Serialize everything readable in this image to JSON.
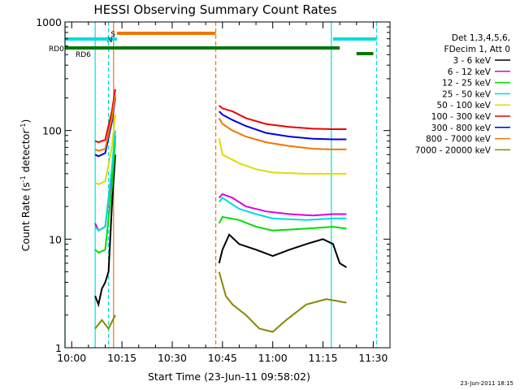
{
  "chart_data": {
    "type": "line",
    "title": "HESSI Observing Summary Count Rates",
    "xlabel": "Start Time (23-Jun-11 09:58:02)",
    "ylabel_main": "Count Rate (s",
    "ylabel_sup1": "-1",
    "ylabel_mid": " detector",
    "ylabel_sup2": "-1",
    "ylabel_end": ")",
    "y_scale": "log",
    "ylim": [
      1,
      1000
    ],
    "xlim_minutes": [
      -2,
      95
    ],
    "x_ticks": [
      {
        "t": 0,
        "label": "10:00"
      },
      {
        "t": 15,
        "label": "10:15"
      },
      {
        "t": 30,
        "label": "10:30"
      },
      {
        "t": 45,
        "label": "10:45"
      },
      {
        "t": 60,
        "label": "11:00"
      },
      {
        "t": 75,
        "label": "11:15"
      },
      {
        "t": 90,
        "label": "11:30"
      }
    ],
    "y_ticks": [
      {
        "v": 1,
        "label": "1"
      },
      {
        "v": 10,
        "label": "10"
      },
      {
        "v": 100,
        "label": "100"
      },
      {
        "v": 1000,
        "label": "1000"
      }
    ],
    "legend_header": [
      "Det 1,3,4,5,6,",
      "FDecim 1, Att 0"
    ],
    "series": [
      {
        "name": "3 - 6 keV",
        "color": "#000000",
        "segments": [
          [
            [
              7,
              3
            ],
            [
              8,
              2.5
            ],
            [
              9,
              3.5
            ],
            [
              10,
              4
            ],
            [
              11,
              5
            ],
            [
              12,
              20
            ],
            [
              13,
              60
            ]
          ],
          [
            [
              44,
              6
            ],
            [
              45,
              8
            ],
            [
              47,
              11
            ],
            [
              50,
              9
            ],
            [
              55,
              8
            ],
            [
              60,
              7
            ],
            [
              65,
              8
            ],
            [
              70,
              9
            ],
            [
              75,
              10
            ],
            [
              78,
              9
            ],
            [
              80,
              6
            ],
            [
              82,
              5.5
            ]
          ]
        ]
      },
      {
        "name": "6 - 12 keV",
        "color": "#dd00dd",
        "segments": [
          [
            [
              7,
              14
            ],
            [
              8,
              12
            ],
            [
              10,
              13
            ],
            [
              12,
              40
            ],
            [
              13,
              90
            ]
          ],
          [
            [
              44,
              24
            ],
            [
              45,
              26
            ],
            [
              48,
              24
            ],
            [
              52,
              20
            ],
            [
              58,
              18
            ],
            [
              65,
              17
            ],
            [
              72,
              16.5
            ],
            [
              78,
              17
            ],
            [
              82,
              17
            ]
          ]
        ]
      },
      {
        "name": "12 - 25 keV",
        "color": "#00dd00",
        "segments": [
          [
            [
              7,
              8
            ],
            [
              8,
              7.5
            ],
            [
              10,
              8
            ],
            [
              12,
              30
            ],
            [
              13,
              80
            ]
          ],
          [
            [
              44,
              14
            ],
            [
              45,
              16
            ],
            [
              50,
              15
            ],
            [
              55,
              13
            ],
            [
              60,
              12
            ],
            [
              70,
              12.5
            ],
            [
              78,
              13
            ],
            [
              82,
              12.5
            ]
          ]
        ]
      },
      {
        "name": "25 - 50 keV",
        "color": "#00dddd",
        "segments": [
          [
            [
              7,
              13
            ],
            [
              8,
              12
            ],
            [
              10,
              13
            ],
            [
              12,
              45
            ],
            [
              13,
              100
            ]
          ],
          [
            [
              44,
              22
            ],
            [
              45,
              24
            ],
            [
              50,
              19
            ],
            [
              55,
              17
            ],
            [
              60,
              15.5
            ],
            [
              70,
              15
            ],
            [
              78,
              15.5
            ],
            [
              82,
              15.5
            ]
          ]
        ]
      },
      {
        "name": "50 - 100 keV",
        "color": "#dddd00",
        "segments": [
          [
            [
              7,
              33
            ],
            [
              8,
              32
            ],
            [
              10,
              34
            ],
            [
              12,
              70
            ],
            [
              13,
              140
            ]
          ],
          [
            [
              44,
              85
            ],
            [
              45,
              60
            ],
            [
              50,
              50
            ],
            [
              55,
              44
            ],
            [
              60,
              41
            ],
            [
              70,
              40
            ],
            [
              78,
              40
            ],
            [
              82,
              40
            ]
          ]
        ]
      },
      {
        "name": "100 - 300 keV",
        "color": "#ee0000",
        "segments": [
          [
            [
              7,
              80
            ],
            [
              8,
              78
            ],
            [
              10,
              82
            ],
            [
              12,
              150
            ],
            [
              13,
              240
            ]
          ],
          [
            [
              44,
              170
            ],
            [
              45,
              160
            ],
            [
              48,
              150
            ],
            [
              52,
              130
            ],
            [
              58,
              115
            ],
            [
              65,
              108
            ],
            [
              72,
              104
            ],
            [
              78,
              103
            ],
            [
              82,
              103
            ]
          ]
        ]
      },
      {
        "name": "300 - 800 keV",
        "color": "#0000dd",
        "segments": [
          [
            [
              7,
              60
            ],
            [
              8,
              58
            ],
            [
              10,
              62
            ],
            [
              12,
              120
            ],
            [
              13,
              200
            ]
          ],
          [
            [
              44,
              150
            ],
            [
              45,
              140
            ],
            [
              48,
              125
            ],
            [
              52,
              110
            ],
            [
              58,
              95
            ],
            [
              65,
              88
            ],
            [
              72,
              84
            ],
            [
              78,
              83
            ],
            [
              82,
              83
            ]
          ]
        ]
      },
      {
        "name": "800 - 7000 keV",
        "color": "#ee7700",
        "segments": [
          [
            [
              7,
              67
            ],
            [
              8,
              65
            ],
            [
              10,
              68
            ],
            [
              12,
              130
            ],
            [
              13,
              210
            ]
          ],
          [
            [
              44,
              130
            ],
            [
              45,
              115
            ],
            [
              48,
              100
            ],
            [
              52,
              88
            ],
            [
              58,
              78
            ],
            [
              65,
              72
            ],
            [
              72,
              68
            ],
            [
              78,
              67
            ],
            [
              82,
              67
            ]
          ]
        ]
      },
      {
        "name": "7000 - 20000 keV",
        "color": "#888800",
        "segments": [
          [
            [
              7,
              1.5
            ],
            [
              9,
              1.8
            ],
            [
              11,
              1.5
            ],
            [
              13,
              2
            ]
          ],
          [
            [
              44,
              5
            ],
            [
              46,
              3
            ],
            [
              48,
              2.5
            ],
            [
              52,
              2
            ],
            [
              56,
              1.5
            ],
            [
              60,
              1.4
            ],
            [
              64,
              1.8
            ],
            [
              70,
              2.5
            ],
            [
              76,
              2.8
            ],
            [
              82,
              2.6
            ]
          ]
        ]
      }
    ],
    "flag_bars": [
      {
        "label": "S",
        "color": "#ee7700",
        "start": 13.5,
        "end": 43
      },
      {
        "label": "N",
        "color": "#00dddd",
        "start": 11,
        "end": 13.5
      },
      {
        "label": "",
        "color": "#00dddd",
        "start": -2,
        "end": 11
      },
      {
        "label": "",
        "color": "#00dddd",
        "start": 78,
        "end": 91
      },
      {
        "label": "RD0",
        "color": "#007700",
        "start": -2,
        "end": 80
      },
      {
        "label": "RD6",
        "color": "#007700",
        "start": 85,
        "end": 90
      }
    ],
    "vertical_lines": [
      {
        "t": -2,
        "color": "#00dddd",
        "style": "solid"
      },
      {
        "t": 7,
        "color": "#00dddd",
        "style": "solid"
      },
      {
        "t": 11,
        "color": "#00dddd",
        "style": "dashed"
      },
      {
        "t": 12.5,
        "color": "#ee7700",
        "style": "solid"
      },
      {
        "t": 43,
        "color": "#ee7700",
        "style": "dashed"
      },
      {
        "t": 77.5,
        "color": "#00dddd",
        "style": "solid"
      },
      {
        "t": 91,
        "color": "#00dddd",
        "style": "dashed"
      }
    ]
  },
  "footer_date": "23-Jun-2011 18:15"
}
